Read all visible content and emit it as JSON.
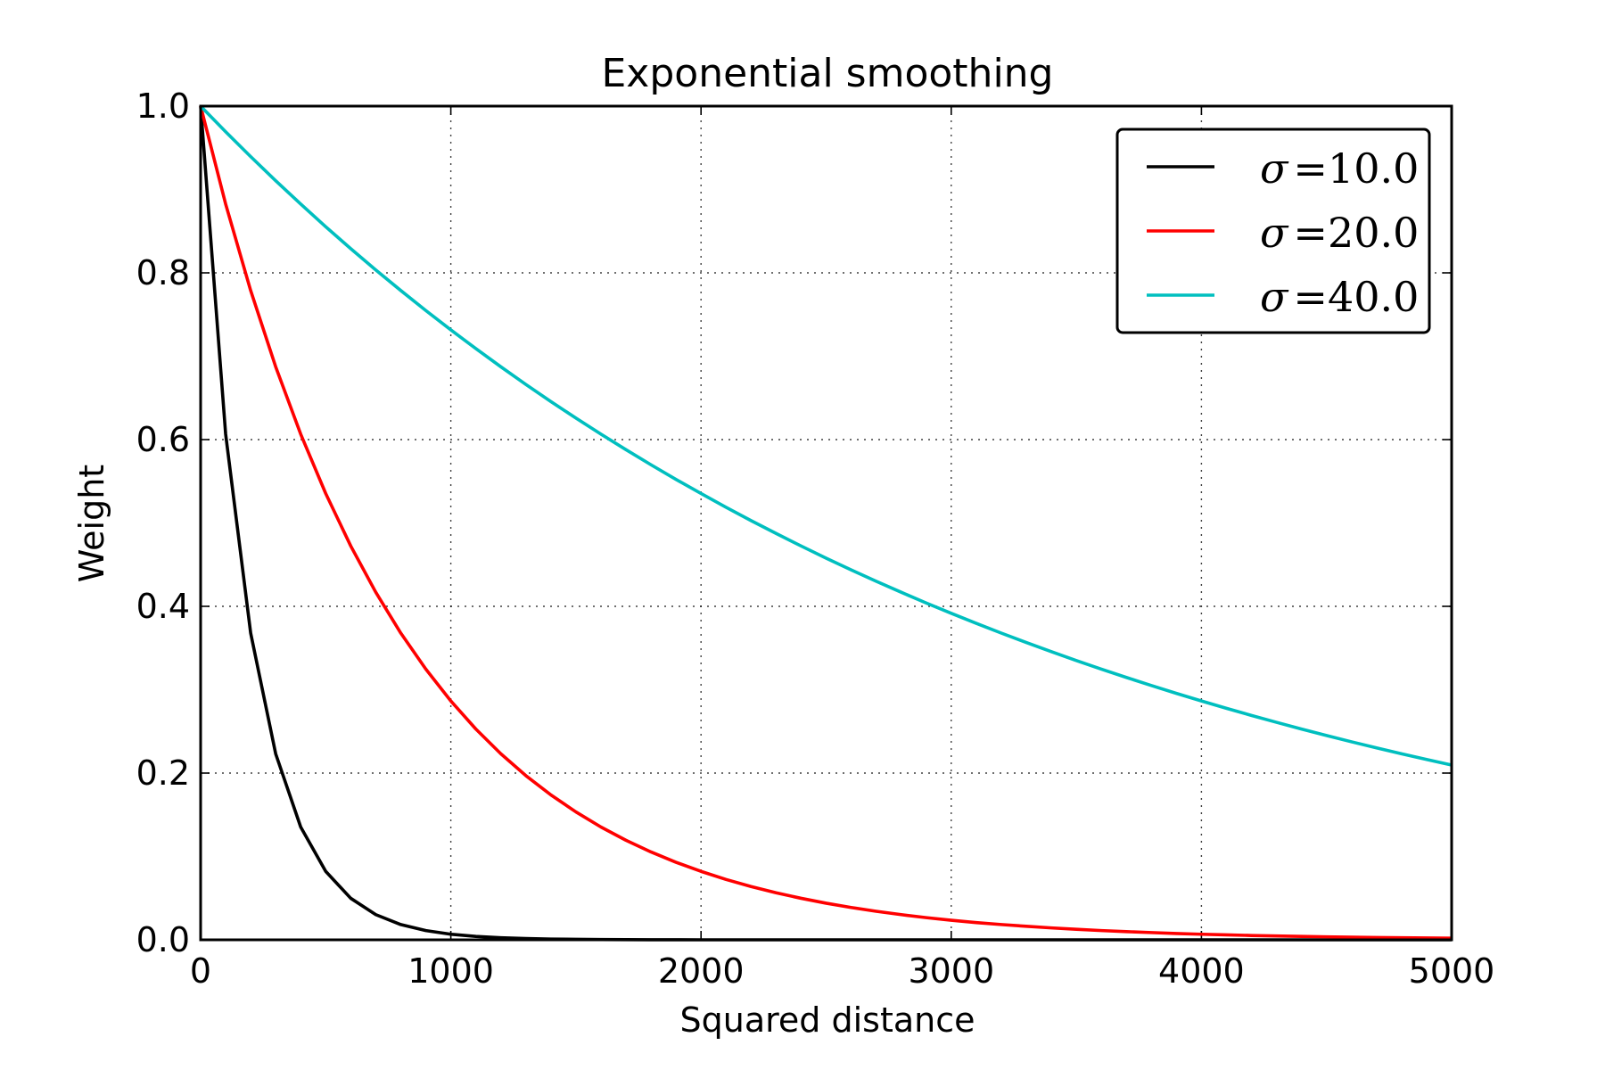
{
  "chart_data": {
    "type": "line",
    "title": "Exponential smoothing",
    "xlabel": "Squared distance",
    "ylabel": "Weight",
    "xlim": [
      0,
      5000
    ],
    "ylim": [
      0.0,
      1.0
    ],
    "x_ticks": [
      0,
      1000,
      2000,
      3000,
      4000,
      5000
    ],
    "x_tick_labels": [
      "0",
      "1000",
      "2000",
      "3000",
      "4000",
      "5000"
    ],
    "y_ticks": [
      0.0,
      0.2,
      0.4,
      0.6,
      0.8,
      1.0
    ],
    "y_tick_labels": [
      "0.0",
      "0.2",
      "0.4",
      "0.6",
      "0.8",
      "1.0"
    ],
    "grid": true,
    "legend_position": "top-right",
    "x": [
      0,
      100,
      200,
      300,
      400,
      500,
      600,
      700,
      800,
      900,
      1000,
      1100,
      1200,
      1300,
      1400,
      1500,
      1600,
      1700,
      1800,
      1900,
      2000,
      2100,
      2200,
      2300,
      2400,
      2500,
      2600,
      2700,
      2800,
      2900,
      3000,
      3100,
      3200,
      3300,
      3400,
      3500,
      3600,
      3700,
      3800,
      3900,
      4000,
      4100,
      4200,
      4300,
      4400,
      4500,
      4600,
      4700,
      4800,
      4900,
      5000
    ],
    "series": [
      {
        "name": "σ = 10.0",
        "sigma_label": "σ",
        "value_label": "10.0",
        "color": "#000000",
        "values": [
          1.0,
          0.6065,
          0.3679,
          0.2231,
          0.1353,
          0.0821,
          0.0498,
          0.0302,
          0.0183,
          0.0111,
          0.0067,
          0.0041,
          0.0025,
          0.0015,
          0.0009,
          0.0006,
          0.0003,
          0.0002,
          0.0001,
          0.0001,
          0.0,
          0.0,
          0.0,
          0.0,
          0.0,
          0.0,
          0.0,
          0.0,
          0.0,
          0.0,
          0.0,
          0.0,
          0.0,
          0.0,
          0.0,
          0.0,
          0.0,
          0.0,
          0.0,
          0.0,
          0.0,
          0.0,
          0.0,
          0.0,
          0.0,
          0.0,
          0.0,
          0.0,
          0.0,
          0.0,
          0.0
        ]
      },
      {
        "name": "σ = 20.0",
        "sigma_label": "σ",
        "value_label": "20.0",
        "color": "#ff0000",
        "values": [
          1.0,
          0.8825,
          0.7788,
          0.6873,
          0.6065,
          0.5353,
          0.4724,
          0.4169,
          0.3679,
          0.3247,
          0.2865,
          0.2528,
          0.2231,
          0.1969,
          0.1738,
          0.1534,
          0.1353,
          0.1194,
          0.1054,
          0.093,
          0.0821,
          0.0724,
          0.0639,
          0.0564,
          0.0498,
          0.0439,
          0.0388,
          0.0342,
          0.0302,
          0.0266,
          0.0235,
          0.0207,
          0.0183,
          0.0162,
          0.0143,
          0.0126,
          0.0111,
          0.0098,
          0.0087,
          0.0076,
          0.0067,
          0.006,
          0.0052,
          0.0046,
          0.0041,
          0.0036,
          0.0032,
          0.0028,
          0.0025,
          0.0022,
          0.0019
        ]
      },
      {
        "name": "σ = 40.0",
        "sigma_label": "σ",
        "value_label": "40.0",
        "color": "#00bfbf",
        "values": [
          1.0,
          0.9692,
          0.9394,
          0.9105,
          0.8825,
          0.8553,
          0.829,
          0.8035,
          0.7788,
          0.7548,
          0.7316,
          0.7091,
          0.6873,
          0.6661,
          0.6456,
          0.6258,
          0.6065,
          0.5879,
          0.5698,
          0.5522,
          0.5353,
          0.5188,
          0.5028,
          0.4874,
          0.4724,
          0.4578,
          0.4437,
          0.4301,
          0.4169,
          0.404,
          0.3916,
          0.3796,
          0.3679,
          0.3566,
          0.3456,
          0.335,
          0.3247,
          0.3147,
          0.305,
          0.2956,
          0.2865,
          0.2777,
          0.2691,
          0.2609,
          0.2528,
          0.2451,
          0.2375,
          0.2302,
          0.2231,
          0.2163,
          0.2096
        ]
      }
    ]
  }
}
